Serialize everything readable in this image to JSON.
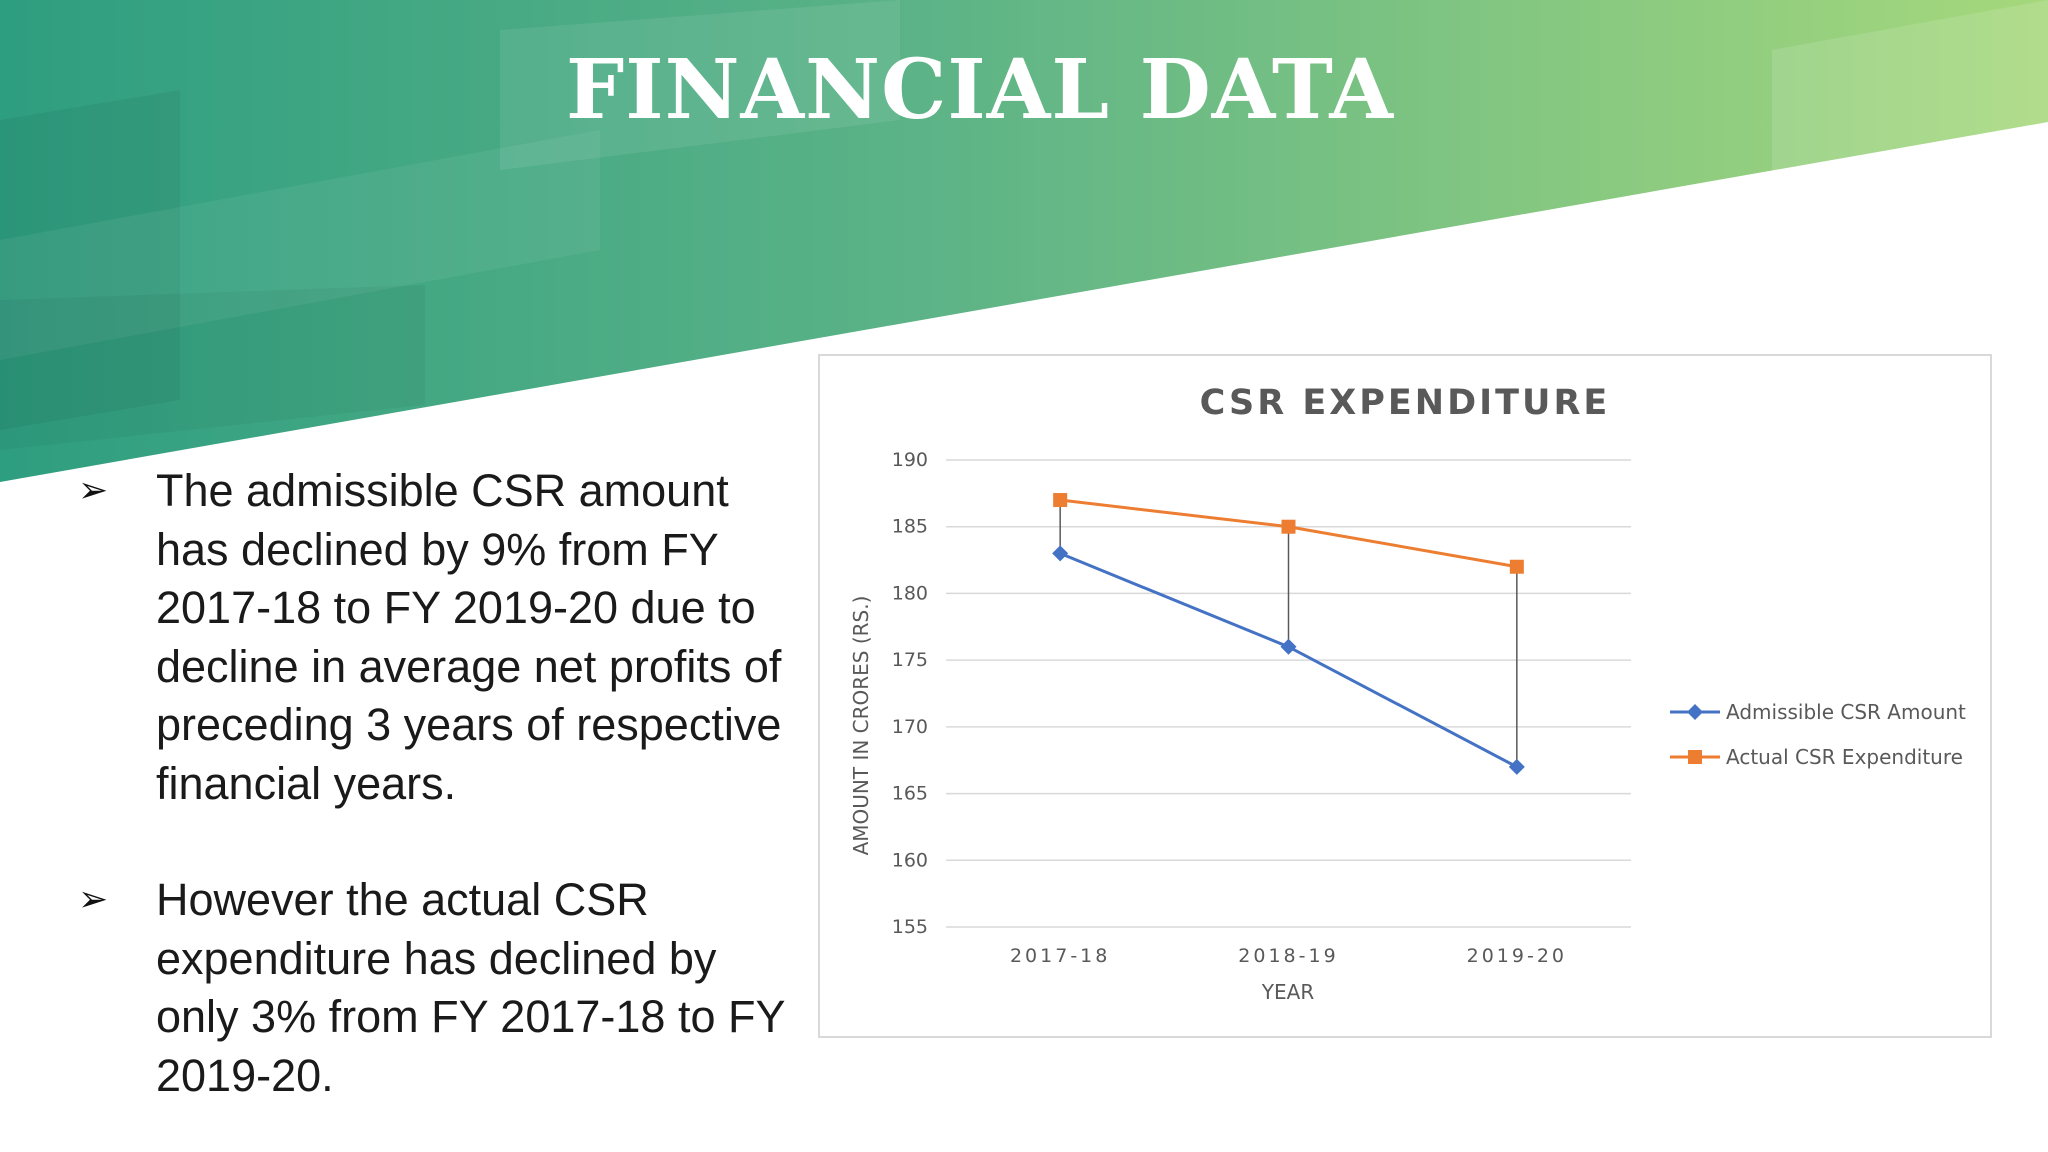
{
  "slide": {
    "title": "FINANCIAL DATA",
    "bullet_symbol": "➢",
    "bullets": [
      "The admissible CSR amount has declined by 9% from FY 2017-18 to FY 2019-20 due to decline in average net profits of preceding 3 years of respective financial years.",
      "However the actual CSR expenditure has declined by only 3% from FY 2017-18 to FY 2019-20."
    ]
  },
  "colors": {
    "header_left": "#2e9e80",
    "header_right": "#a6d87c",
    "series_admissible": "#4472c4",
    "series_actual": "#ed7d31"
  },
  "chart_data": {
    "type": "line",
    "title": "CSR EXPENDITURE",
    "xlabel": "YEAR",
    "ylabel": "AMOUNT IN CRORES (RS.)",
    "categories": [
      "2017-18",
      "2018-19",
      "2019-20"
    ],
    "ylim": [
      155,
      190
    ],
    "yticks": [
      155,
      160,
      165,
      170,
      175,
      180,
      185,
      190
    ],
    "grid": true,
    "legend_position": "right",
    "drop_lines": true,
    "series": [
      {
        "name": "Admissible CSR Amount",
        "values": [
          183,
          176,
          167
        ],
        "color": "#4472c4",
        "marker": "diamond"
      },
      {
        "name": "Actual CSR Expenditure",
        "values": [
          187,
          185,
          182
        ],
        "color": "#ed7d31",
        "marker": "square"
      }
    ]
  }
}
